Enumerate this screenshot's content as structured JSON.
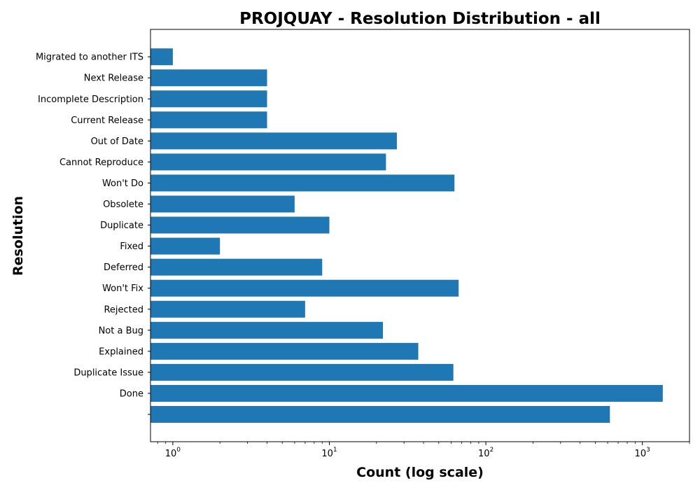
{
  "chart_data": {
    "type": "bar",
    "orientation": "horizontal",
    "title": "PROJQUAY - Resolution Distribution - all",
    "xlabel": "Count (log scale)",
    "ylabel": "Resolution",
    "x_scale": "log",
    "xlim": [
      0.72,
      2000
    ],
    "x_ticks": [
      {
        "value": 1,
        "base": "10",
        "exp": "0"
      },
      {
        "value": 10,
        "base": "10",
        "exp": "1"
      },
      {
        "value": 100,
        "base": "10",
        "exp": "2"
      },
      {
        "value": 1000,
        "base": "10",
        "exp": "3"
      }
    ],
    "grid": false,
    "color": "#1f77b4",
    "categories": [
      "",
      "Done",
      "Duplicate Issue",
      "Explained",
      "Not a Bug",
      "Rejected",
      "Won't Fix",
      "Deferred",
      "Fixed",
      "Duplicate",
      "Obsolete",
      "Won't Do",
      "Cannot Reproduce",
      "Out of Date",
      "Current Release",
      "Incomplete Description",
      "Next Release",
      "Migrated to another ITS"
    ],
    "values": [
      620,
      1350,
      62,
      37,
      22,
      7,
      67,
      9,
      2,
      10,
      6,
      63,
      23,
      27,
      4,
      4,
      4,
      1
    ]
  }
}
